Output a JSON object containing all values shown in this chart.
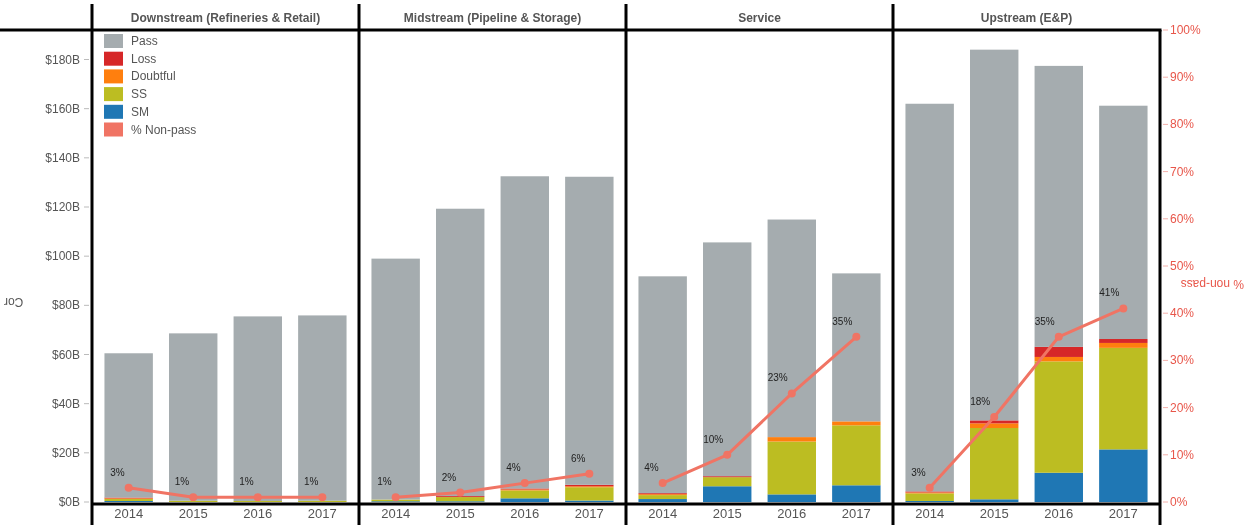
{
  "chart_data": [
    {
      "type": "bar",
      "stacked": true,
      "title": "Downstream (Refineries & Retail)",
      "ylabel": "Cor",
      "categories": [
        "2014",
        "2015",
        "2016",
        "2017"
      ],
      "ylim": [
        0,
        192
      ],
      "yticks": [
        {
          "value": 0,
          "label": "$0B"
        },
        {
          "value": 20,
          "label": "$20B"
        },
        {
          "value": 40,
          "label": "$40B"
        },
        {
          "value": 60,
          "label": "$60B"
        },
        {
          "value": 80,
          "label": "$80B"
        },
        {
          "value": 100,
          "label": "$100B"
        },
        {
          "value": 120,
          "label": "$120B"
        },
        {
          "value": 140,
          "label": "$140B"
        },
        {
          "value": 160,
          "label": "$160B"
        },
        {
          "value": 180,
          "label": "$180B"
        }
      ],
      "y2lim": [
        0,
        100
      ],
      "tick_labels": "xy",
      "legend": "top left",
      "marker": "circle",
      "series": [
        {
          "name": "SM",
          "color": "#1f77b4",
          "values": [
            0.4,
            0,
            0,
            0
          ]
        },
        {
          "name": "SS",
          "color": "#bcbd22",
          "values": [
            0.8,
            0.5,
            0.4,
            0.5
          ]
        },
        {
          "name": "Doubtful",
          "color": "#ff7f0e",
          "values": [
            0.3,
            0,
            0,
            0
          ]
        },
        {
          "name": "Loss",
          "color": "#d62728",
          "values": [
            0.3,
            0,
            0,
            0
          ]
        },
        {
          "name": "Pass",
          "color": "#a5acaf",
          "values": [
            58.7,
            68.1,
            75.1,
            75.4
          ]
        },
        {
          "name": "% Non-pass",
          "type": "line",
          "axis": "y2",
          "color": "#f07464",
          "values": [
            3,
            1,
            1,
            1
          ],
          "value_labels": [
            "3%",
            "1%",
            "1%",
            "1%"
          ]
        }
      ]
    },
    {
      "type": "bar",
      "stacked": true,
      "title": "Midstream (Pipeline & Storage)",
      "categories": [
        "2014",
        "2015",
        "2016",
        "2017"
      ],
      "ylim": [
        0,
        192
      ],
      "y2lim": [
        0,
        100
      ],
      "tick_labels": "x",
      "marker": "circle",
      "series": [
        {
          "color": "#1f77b4",
          "values": [
            0.3,
            0.3,
            1.5,
            0.6
          ]
        },
        {
          "color": "#bcbd22",
          "values": [
            0.7,
            1.7,
            3.2,
            5.4
          ]
        },
        {
          "color": "#ff7f0e",
          "values": [
            0,
            0,
            0.4,
            0.4
          ]
        },
        {
          "color": "#d62728",
          "values": [
            0,
            0.4,
            0.4,
            0.6
          ]
        },
        {
          "color": "#a5acaf",
          "values": [
            98,
            116.9,
            127,
            125.3
          ]
        },
        {
          "type": "line",
          "axis": "y2",
          "color": "#f07464",
          "values": [
            1,
            2,
            4,
            6
          ],
          "value_labels": [
            "1%",
            "2%",
            "4%",
            "6%"
          ]
        }
      ]
    },
    {
      "type": "bar",
      "stacked": true,
      "title": "Service",
      "categories": [
        "2014",
        "2015",
        "2016",
        "2017"
      ],
      "ylim": [
        0,
        192
      ],
      "y2lim": [
        0,
        100
      ],
      "tick_labels": "x",
      "marker": "circle",
      "series": [
        {
          "color": "#1f77b4",
          "values": [
            1.2,
            6.4,
            3.1,
            6.8
          ]
        },
        {
          "color": "#bcbd22",
          "values": [
            1.6,
            3.7,
            21.5,
            24.4
          ]
        },
        {
          "color": "#ff7f0e",
          "values": [
            0.4,
            0,
            1.8,
            1.6
          ]
        },
        {
          "color": "#d62728",
          "values": [
            0.4,
            0.4,
            0,
            0
          ]
        },
        {
          "color": "#a5acaf",
          "values": [
            88.2,
            95.1,
            88.5,
            60.2
          ]
        },
        {
          "type": "line",
          "axis": "y2",
          "color": "#f07464",
          "values": [
            4,
            10,
            23,
            35
          ],
          "value_labels": [
            "4%",
            "10%",
            "23%",
            "35%"
          ]
        }
      ]
    },
    {
      "type": "bar",
      "stacked": true,
      "title": "Upstream (E&P)",
      "y2label": "% non-pass",
      "categories": [
        "2014",
        "2015",
        "2016",
        "2017"
      ],
      "ylim": [
        0,
        192
      ],
      "y2lim": [
        0,
        100
      ],
      "y2ticks": [
        {
          "value": 0,
          "label": "0%"
        },
        {
          "value": 10,
          "label": "10%"
        },
        {
          "value": 20,
          "label": "20%"
        },
        {
          "value": 30,
          "label": "30%"
        },
        {
          "value": 40,
          "label": "40%"
        },
        {
          "value": 50,
          "label": "50%"
        },
        {
          "value": 60,
          "label": "60%"
        },
        {
          "value": 70,
          "label": "70%"
        },
        {
          "value": 80,
          "label": "80%"
        },
        {
          "value": 90,
          "label": "90%"
        },
        {
          "value": 100,
          "label": "100%"
        }
      ],
      "tick_labels": "xy2",
      "marker": "circle",
      "series": [
        {
          "color": "#1f77b4",
          "values": [
            0.4,
            1.1,
            11.9,
            21.4
          ]
        },
        {
          "color": "#bcbd22",
          "values": [
            3.1,
            29,
            45.3,
            41.3
          ]
        },
        {
          "color": "#ff7f0e",
          "values": [
            0.4,
            1.9,
            1.8,
            2
          ]
        },
        {
          "color": "#d62728",
          "values": [
            0.4,
            1.2,
            4.1,
            1.6
          ]
        },
        {
          "color": "#a5acaf",
          "values": [
            157.7,
            150.8,
            114.3,
            94.9
          ]
        },
        {
          "type": "line",
          "axis": "y2",
          "color": "#f07464",
          "values": [
            3,
            18,
            35,
            41
          ],
          "value_labels": [
            "3%",
            "18%",
            "35%",
            "41%"
          ]
        }
      ]
    }
  ]
}
